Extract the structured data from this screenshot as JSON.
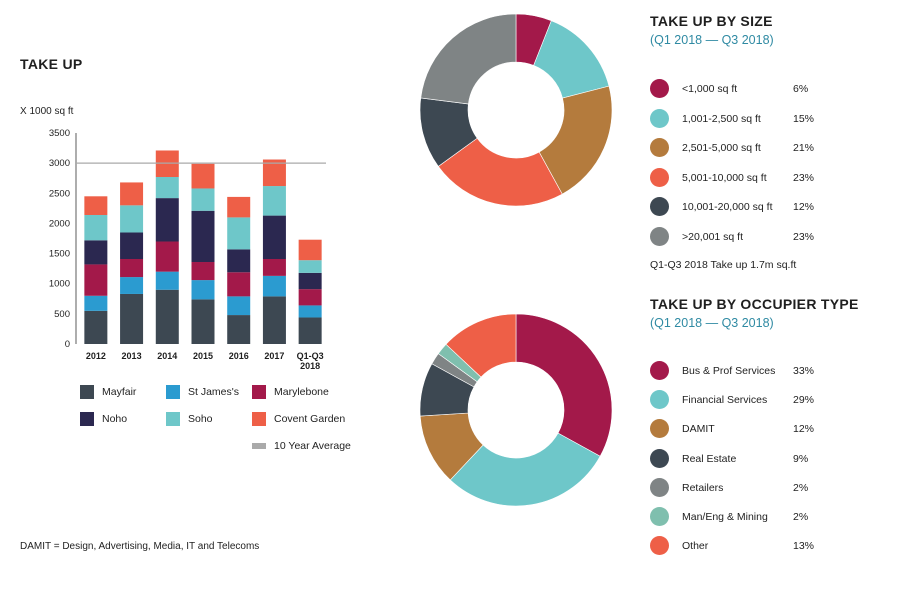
{
  "colors": {
    "mayfair": "#3d4852",
    "st_james": "#2b9bd0",
    "marylebone": "#a3194a",
    "noho": "#2b2850",
    "soho": "#6ec7c9",
    "covent_garden": "#ee5f47",
    "avg": "#aaaaaa"
  },
  "take_up": {
    "title": "TAKE UP",
    "unit_label": "X 1000 sq ft",
    "footnote": "DAMIT = Design, Advertising, Media, IT and Telecoms"
  },
  "chart_data": [
    {
      "type": "bar",
      "stacked": true,
      "title": "TAKE UP",
      "ylabel": "X 1000 sq ft",
      "ylim": [
        0,
        3500
      ],
      "yticks": [
        "0",
        "500",
        "1000",
        "1500",
        "2000",
        "2500",
        "3000",
        "3500"
      ],
      "categories": [
        "2012",
        "2013",
        "2014",
        "2015",
        "2016",
        "2017",
        "Q1-Q3 2018"
      ],
      "category_lines": [
        [
          "2012"
        ],
        [
          "2013"
        ],
        [
          "2014"
        ],
        [
          "2015"
        ],
        [
          "2016"
        ],
        [
          "2017"
        ],
        [
          "Q1-Q3",
          "2018"
        ]
      ],
      "series": [
        {
          "name": "Mayfair",
          "key": "mayfair",
          "values": [
            550,
            830,
            900,
            740,
            480,
            790,
            440
          ]
        },
        {
          "name": "St James's",
          "key": "st_james",
          "values": [
            250,
            280,
            300,
            320,
            310,
            340,
            200
          ]
        },
        {
          "name": "Marylebone",
          "key": "marylebone",
          "values": [
            520,
            300,
            500,
            300,
            400,
            280,
            270
          ]
        },
        {
          "name": "Noho",
          "key": "noho",
          "values": [
            400,
            440,
            720,
            850,
            380,
            720,
            270
          ]
        },
        {
          "name": "Soho",
          "key": "soho",
          "values": [
            420,
            450,
            350,
            370,
            530,
            490,
            210
          ]
        },
        {
          "name": "Covent Garden",
          "key": "covent_garden",
          "values": [
            310,
            380,
            440,
            410,
            340,
            440,
            340
          ]
        }
      ],
      "reference_line": {
        "name": "10 Year Average",
        "value": 3000
      },
      "legend": [
        {
          "label": "Mayfair",
          "key": "mayfair"
        },
        {
          "label": "St James's",
          "key": "st_james"
        },
        {
          "label": "Marylebone",
          "key": "marylebone"
        },
        {
          "label": "Noho",
          "key": "noho"
        },
        {
          "label": "Soho",
          "key": "soho"
        },
        {
          "label": "Covent Garden",
          "key": "covent_garden"
        },
        {
          "label": "10 Year Average",
          "key": "avg"
        }
      ]
    },
    {
      "type": "pie",
      "donut": true,
      "title": "TAKE UP BY SIZE",
      "subtitle": "(Q1 2018 — Q3 2018)",
      "note": "Q1-Q3 2018 Take up 1.7m sq.ft",
      "slices": [
        {
          "label": "<1,000 sq ft",
          "value": 6,
          "pct": "6%",
          "color": "#a3194a"
        },
        {
          "label": "1,001-2,500 sq ft",
          "value": 15,
          "pct": "15%",
          "color": "#6ec7c9"
        },
        {
          "label": "2,501-5,000 sq ft",
          "value": 21,
          "pct": "21%",
          "color": "#b47b3d"
        },
        {
          "label": "5,001-10,000 sq ft",
          "value": 23,
          "pct": "23%",
          "color": "#ee5f47"
        },
        {
          "label": "10,001-20,000 sq ft",
          "value": 12,
          "pct": "12%",
          "color": "#3d4852"
        },
        {
          "label": ">20,001 sq ft",
          "value": 23,
          "pct": "23%",
          "color": "#7f8485"
        }
      ]
    },
    {
      "type": "pie",
      "donut": true,
      "title": "TAKE UP BY OCCUPIER TYPE",
      "subtitle": "(Q1 2018 — Q3 2018)",
      "slices": [
        {
          "label": "Bus & Prof Services",
          "value": 33,
          "pct": "33%",
          "color": "#a3194a"
        },
        {
          "label": "Financial Services",
          "value": 29,
          "pct": "29%",
          "color": "#6ec7c9"
        },
        {
          "label": "DAMIT",
          "value": 12,
          "pct": "12%",
          "color": "#b47b3d"
        },
        {
          "label": "Real Estate",
          "value": 9,
          "pct": "9%",
          "color": "#3d4852"
        },
        {
          "label": "Retailers",
          "value": 2,
          "pct": "2%",
          "color": "#7f8485"
        },
        {
          "label": "Man/Eng & Mining",
          "value": 2,
          "pct": "2%",
          "color": "#7fbfae"
        },
        {
          "label": "Other",
          "value": 13,
          "pct": "13%",
          "color": "#ee5f47"
        }
      ]
    }
  ]
}
